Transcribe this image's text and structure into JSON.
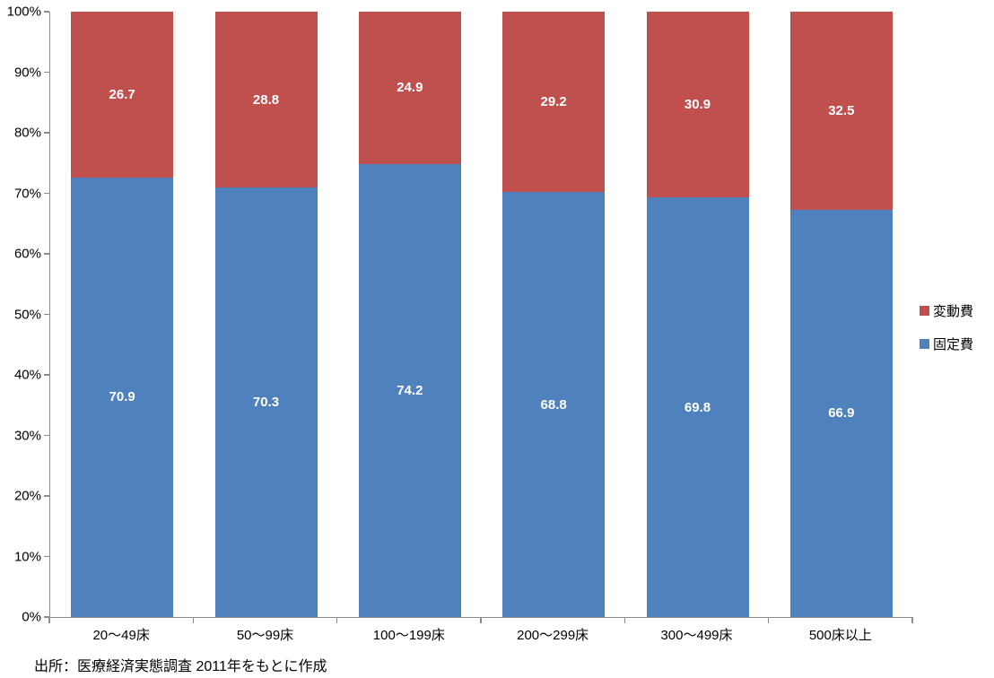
{
  "chart_data": {
    "type": "bar",
    "subtype": "stacked-100-percent",
    "title": "",
    "xlabel": "",
    "ylabel": "",
    "categories": [
      "20〜49床",
      "50〜99床",
      "100〜199床",
      "200〜299床",
      "300〜499床",
      "500床以上"
    ],
    "series": [
      {
        "name": "固定費",
        "color": "#4F81BD",
        "values": [
          70.9,
          70.3,
          74.2,
          68.8,
          69.8,
          66.9
        ]
      },
      {
        "name": "変動費",
        "color": "#C0504D",
        "values": [
          26.7,
          28.8,
          24.9,
          29.2,
          30.9,
          32.5
        ]
      }
    ],
    "y_axis": {
      "min": 0,
      "max": 100,
      "tick_labels": [
        "0%",
        "10%",
        "20%",
        "30%",
        "40%",
        "50%",
        "60%",
        "70%",
        "80%",
        "90%",
        "100%"
      ],
      "grid": false
    },
    "legend": {
      "position": "right",
      "entries": [
        {
          "label": "変動費",
          "color": "#C0504D"
        },
        {
          "label": "固定費",
          "color": "#4F81BD"
        }
      ]
    }
  },
  "source_note": "出所：医療経済実態調査 2011年をもとに作成",
  "colors": {
    "axis_line": "#8c8c8c",
    "axis_text": "#000000",
    "data_label_text": "#ffffff",
    "background": "#ffffff"
  }
}
